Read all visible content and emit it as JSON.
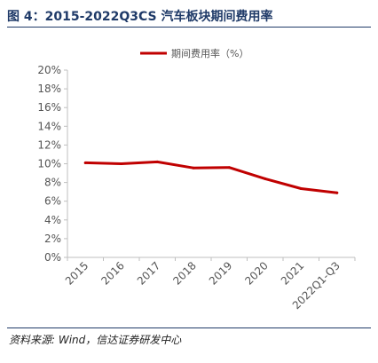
{
  "figure": {
    "title": "图 4：2015-2022Q3CS 汽车板块期间费用率",
    "source": "资料来源: Wind，信达证券研发中心"
  },
  "chart_data": {
    "type": "line",
    "categories": [
      "2015",
      "2016",
      "2017",
      "2018",
      "2019",
      "2020",
      "2021",
      "2022Q1-Q3"
    ],
    "series": [
      {
        "name": "期间费用率（%）",
        "values": [
          10.1,
          10.0,
          10.2,
          9.55,
          9.6,
          8.4,
          7.35,
          6.9
        ],
        "color": "#c00000"
      }
    ],
    "ylim": [
      0,
      20
    ],
    "yticks": [
      "0%",
      "2%",
      "4%",
      "6%",
      "8%",
      "10%",
      "12%",
      "14%",
      "16%",
      "18%",
      "20%"
    ],
    "xlabel": "",
    "ylabel": "",
    "grid": false,
    "legend": "top-center"
  }
}
